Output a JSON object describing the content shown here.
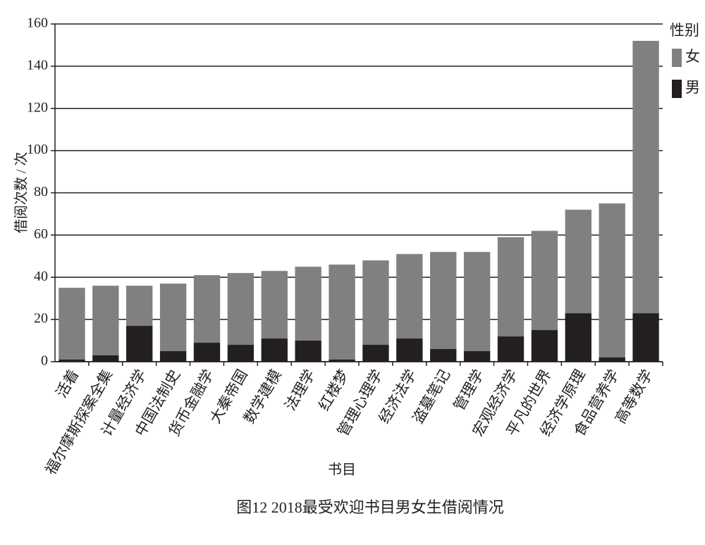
{
  "chart_data": {
    "type": "stacked_bar",
    "y_label": "借阅次数 / 次",
    "x_label": "书目",
    "caption": "图12  2018最受欢迎书目男女生借阅情况",
    "legend_title": "性别",
    "legend_position": "right",
    "categories": [
      "活着",
      "福尔摩斯探案全集",
      "计量经济学",
      "中国法制史",
      "货币金融学",
      "大秦帝国",
      "数学建模",
      "法理学",
      "红楼梦",
      "管理心理学",
      "经济法学",
      "盗墓笔记",
      "管理学",
      "宏观经济学",
      "平凡的世界",
      "经济学原理",
      "食品营养学",
      "高等数学"
    ],
    "series": [
      {
        "name": "女",
        "color": "#808080",
        "values": [
          34,
          33,
          19,
          32,
          32,
          34,
          32,
          35,
          45,
          40,
          40,
          46,
          47,
          47,
          47,
          49,
          73,
          129
        ]
      },
      {
        "name": "男",
        "color": "#231f20",
        "values": [
          1,
          3,
          17,
          5,
          9,
          8,
          11,
          10,
          1,
          8,
          11,
          6,
          5,
          12,
          15,
          23,
          2,
          23
        ]
      }
    ],
    "ylim": [
      0,
      160
    ],
    "yticks": [
      0,
      20,
      40,
      60,
      80,
      100,
      120,
      140,
      160
    ],
    "grid": true
  }
}
